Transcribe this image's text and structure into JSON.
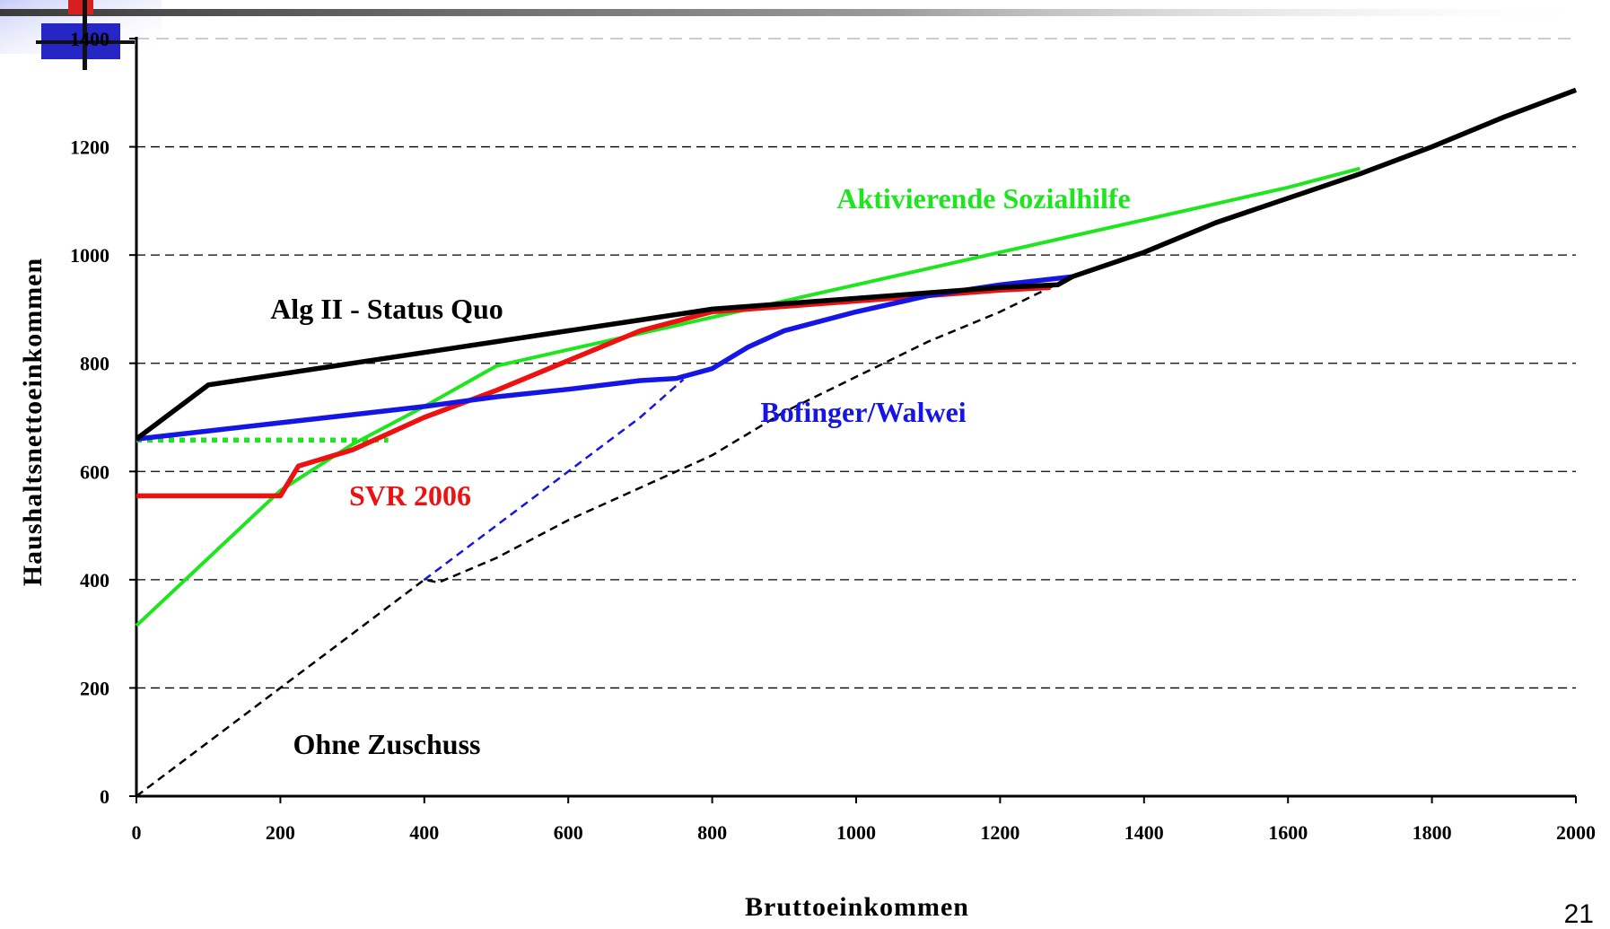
{
  "page_number": "21",
  "chart_data": {
    "type": "line",
    "xlabel": "Bruttoeinkommen",
    "ylabel": "Haushaltsnettoeinkommen",
    "xlim": [
      0,
      2000
    ],
    "ylim": [
      0,
      1400
    ],
    "xticks": [
      0,
      200,
      400,
      600,
      800,
      1000,
      1200,
      1400,
      1600,
      1800,
      2000
    ],
    "yticks": [
      0,
      200,
      400,
      600,
      800,
      1000,
      1200,
      1400
    ],
    "grid": "horizontal dashed",
    "series": [
      {
        "name": "Ohne Zuschuss",
        "color": "#000000",
        "style": "dashed-thin",
        "x": [
          0,
          100,
          200,
          300,
          400,
          420,
          500,
          600,
          700,
          800,
          900,
          1000,
          1100,
          1200,
          1300,
          1400,
          1500,
          1600,
          1700,
          1800,
          1900,
          2000
        ],
        "y": [
          0,
          100,
          200,
          300,
          400,
          395,
          440,
          510,
          570,
          630,
          710,
          775,
          840,
          895,
          960,
          1005,
          1060,
          1105,
          1150,
          1200,
          1255,
          1305
        ]
      },
      {
        "name": "Alg II - Status Quo",
        "color": "#000000",
        "style": "solid-thick",
        "x": [
          0,
          100,
          200,
          300,
          400,
          500,
          600,
          700,
          800,
          900,
          1000,
          1100,
          1200,
          1280,
          1300,
          1400,
          1500,
          1600,
          1700,
          1800,
          1900,
          2000
        ],
        "y": [
          660,
          760,
          780,
          800,
          820,
          840,
          860,
          880,
          900,
          910,
          920,
          930,
          940,
          945,
          960,
          1005,
          1060,
          1105,
          1150,
          1200,
          1255,
          1305
        ]
      },
      {
        "name": "Aktivierende Sozialhilfe",
        "color": "#1ee61e",
        "style": "solid",
        "x": [
          0,
          100,
          200,
          300,
          400,
          500,
          600,
          700,
          800,
          900,
          1000,
          1100,
          1200,
          1300,
          1400,
          1500,
          1600,
          1700
        ],
        "y": [
          315,
          440,
          565,
          650,
          720,
          795,
          825,
          855,
          885,
          915,
          945,
          975,
          1005,
          1035,
          1065,
          1095,
          1125,
          1160
        ]
      },
      {
        "name": "Aktivierende Sozialhilfe (gepunktet)",
        "color": "#1ee61e",
        "style": "dotted",
        "x": [
          0,
          350
        ],
        "y": [
          658,
          658
        ]
      },
      {
        "name": "SVR 2006",
        "color": "#ee1111",
        "style": "solid-thick",
        "x": [
          0,
          200,
          225,
          300,
          400,
          500,
          600,
          700,
          800,
          900,
          1000,
          1100,
          1200,
          1270
        ],
        "y": [
          555,
          555,
          610,
          640,
          700,
          750,
          805,
          860,
          895,
          905,
          915,
          925,
          935,
          940
        ]
      },
      {
        "name": "Bofinger/Walwei",
        "color": "#1515e6",
        "style": "solid-thick",
        "x": [
          0,
          100,
          200,
          300,
          400,
          500,
          600,
          700,
          750,
          800,
          850,
          900,
          1000,
          1100,
          1200,
          1300
        ],
        "y": [
          660,
          675,
          690,
          705,
          720,
          738,
          752,
          768,
          772,
          790,
          830,
          860,
          895,
          925,
          945,
          960
        ]
      },
      {
        "name": "Bofinger/Walwei (gestrichelt)",
        "color": "#1515e6",
        "style": "dashed-thin",
        "x": [
          400,
          500,
          600,
          700,
          760
        ],
        "y": [
          400,
          500,
          600,
          700,
          770
        ]
      }
    ],
    "annotations": [
      {
        "text": "Aktivierende Sozialhilfe",
        "color": "#1ee61e"
      },
      {
        "text": "Alg II - Status Quo",
        "color": "#000000"
      },
      {
        "text": "Bofinger/Walwei",
        "color": "#1515e6"
      },
      {
        "text": "SVR 2006",
        "color": "#ee1111"
      },
      {
        "text": "Ohne Zuschuss",
        "color": "#000000"
      }
    ]
  }
}
